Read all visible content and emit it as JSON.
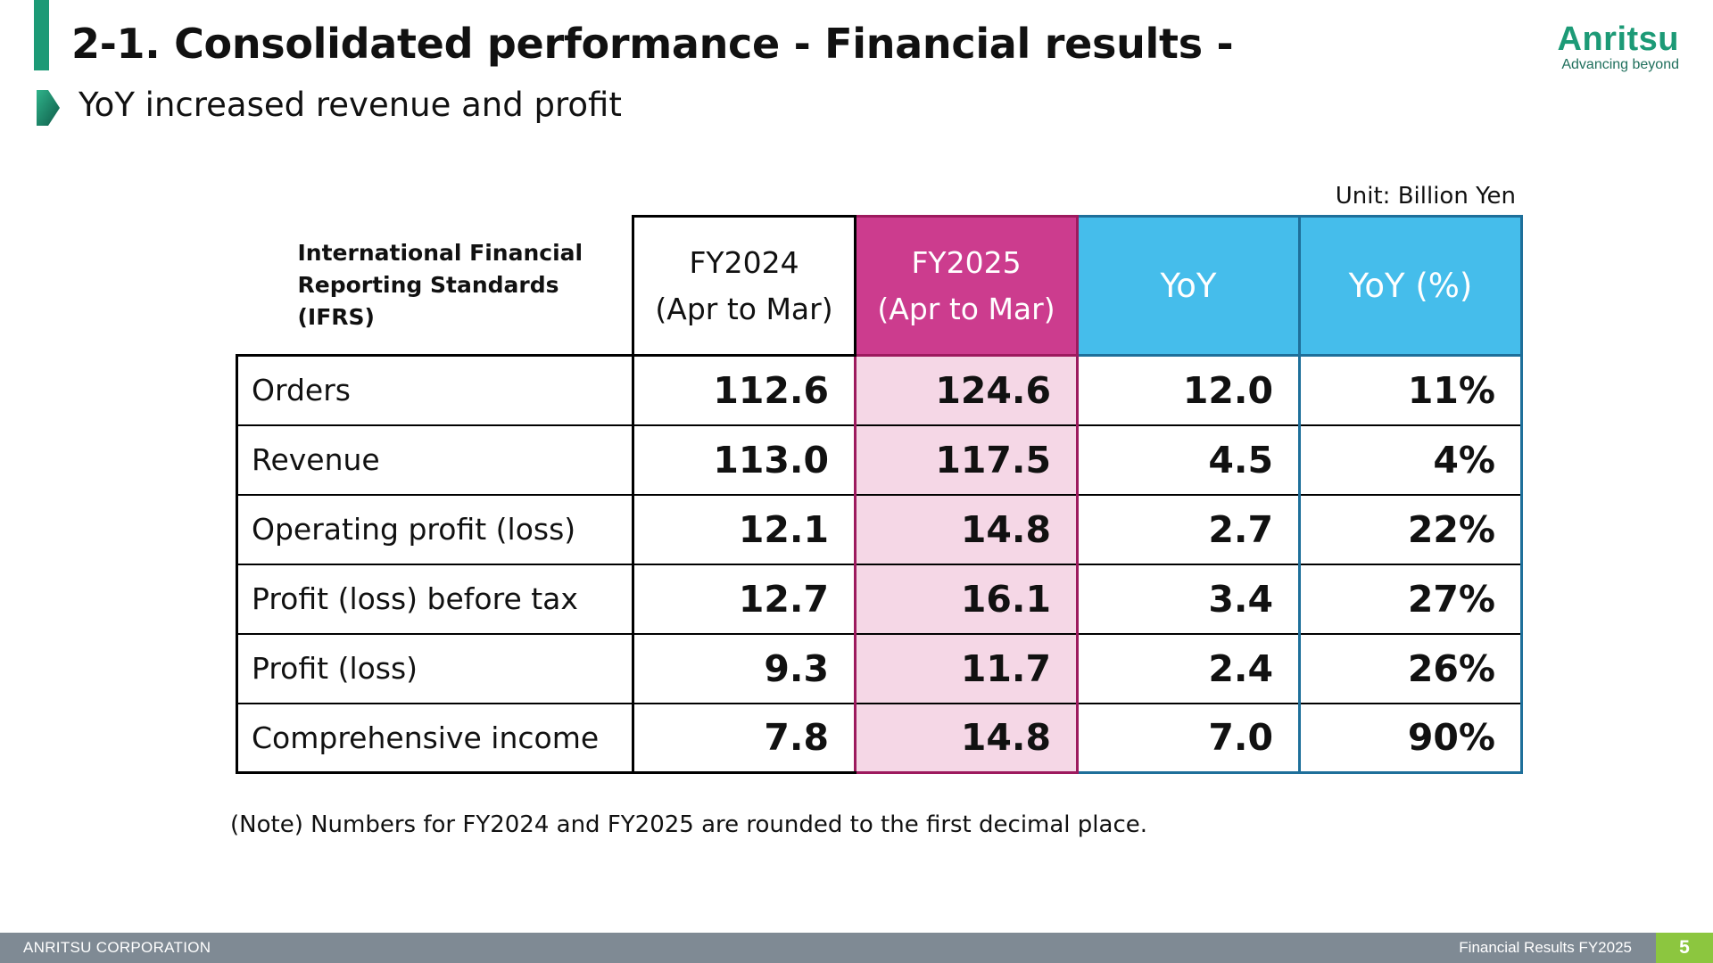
{
  "header": {
    "title": "2-1. Consolidated performance - Financial results -",
    "subtitle": "YoY increased revenue and profit"
  },
  "logo": {
    "wordmark": "Anritsu",
    "tagline": "Advancing beyond",
    "color": "#1c9a76"
  },
  "table": {
    "unit": "Unit: Billion Yen",
    "standard_label_line1": "International Financial",
    "standard_label_line2": "Reporting Standards (IFRS)",
    "columns": [
      {
        "line1": "FY2024",
        "line2": "(Apr to Mar)"
      },
      {
        "line1": "FY2025",
        "line2": "(Apr to Mar)"
      },
      {
        "line1": "YoY"
      },
      {
        "line1": "YoY (%)"
      }
    ],
    "rows": [
      {
        "label": "Orders",
        "fy2024": "112.6",
        "fy2025": "124.6",
        "yoy": "12.0",
        "yoy_pct": "11%"
      },
      {
        "label": "Revenue",
        "fy2024": "113.0",
        "fy2025": "117.5",
        "yoy": "4.5",
        "yoy_pct": "4%"
      },
      {
        "label": "Operating profit (loss)",
        "fy2024": "12.1",
        "fy2025": "14.8",
        "yoy": "2.7",
        "yoy_pct": "22%"
      },
      {
        "label": "Profit (loss) before tax",
        "fy2024": "12.7",
        "fy2025": "16.1",
        "yoy": "3.4",
        "yoy_pct": "27%"
      },
      {
        "label": "Profit (loss)",
        "fy2024": "9.3",
        "fy2025": "11.7",
        "yoy": "2.4",
        "yoy_pct": "26%"
      },
      {
        "label": "Comprehensive income",
        "fy2024": "7.8",
        "fy2025": "14.8",
        "yoy": "7.0",
        "yoy_pct": "90%"
      }
    ],
    "colors": {
      "fy2025_header": "#cc3c8e",
      "fy2025_cells": "#f5d7e6",
      "yoy_header": "#45bdeb"
    }
  },
  "note": "(Note) Numbers for FY2024 and FY2025 are rounded to the first decimal place.",
  "footer": {
    "company": "ANRITSU CORPORATION",
    "doc_title": "Financial Results FY2025",
    "page": "5"
  }
}
